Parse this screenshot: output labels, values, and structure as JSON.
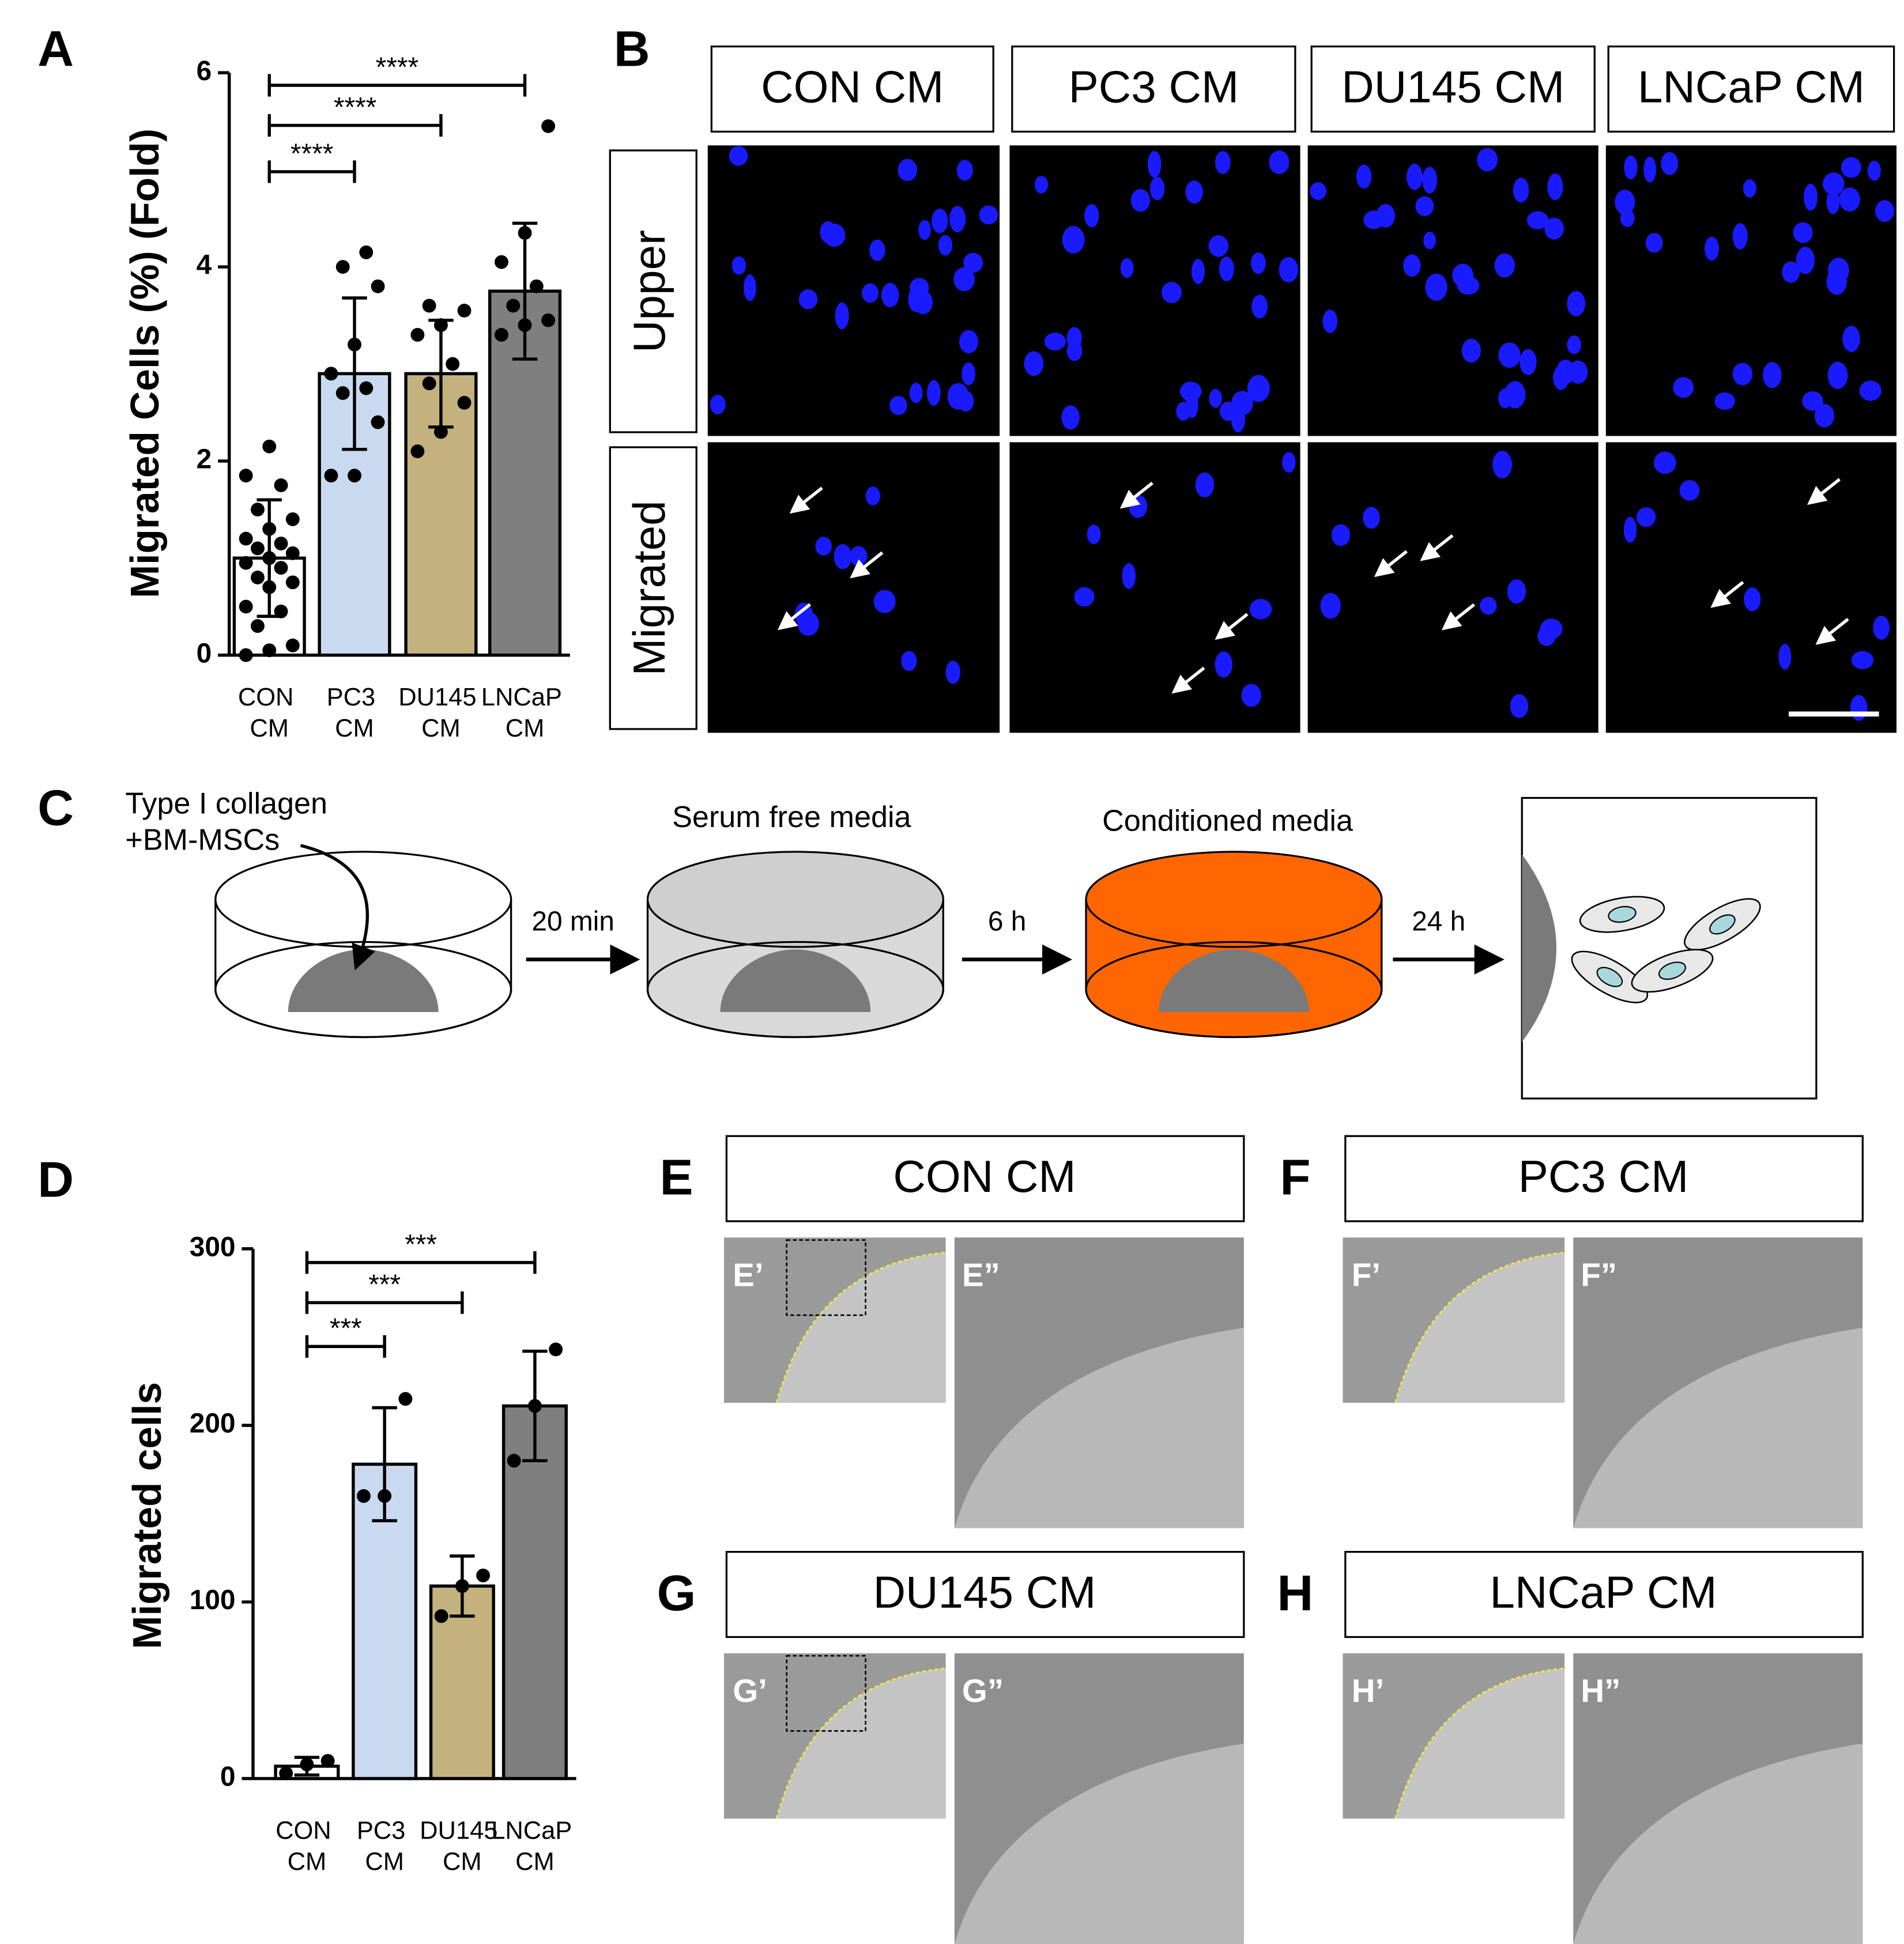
{
  "chart_data": [
    {
      "type": "bar",
      "panel": "A",
      "y_label": "Migrated Cells (%) (Fold)",
      "categories": [
        "CON CM",
        "PC3 CM",
        "DU145 CM",
        "LNCaP CM"
      ],
      "values": [
        1.0,
        2.9,
        2.9,
        3.75
      ],
      "errors": [
        0.6,
        0.78,
        0.55,
        0.7
      ],
      "points": [
        [
          0,
          0.05,
          0.1,
          0.3,
          0.45,
          0.5,
          0.7,
          0.75,
          0.8,
          0.9,
          0.95,
          1.0,
          1.05,
          1.1,
          1.15,
          1.2,
          1.3,
          1.4,
          1.5,
          1.75,
          1.85,
          2.15
        ],
        [
          1.85,
          1.85,
          2.4,
          2.7,
          2.75,
          2.9,
          3.2,
          3.8,
          4.0,
          4.15
        ],
        [
          2.1,
          2.3,
          2.6,
          2.8,
          3.0,
          3.3,
          3.4,
          3.55,
          3.6
        ],
        [
          3.3,
          3.4,
          3.45,
          3.6,
          3.8,
          4.05,
          4.35,
          5.45
        ]
      ],
      "colors": [
        "#ffffff",
        "#c9daf0",
        "#c4b27e",
        "#7f7f7f"
      ],
      "ylim": [
        0,
        6
      ],
      "yticks": [
        0,
        2,
        4,
        6
      ],
      "comparisons": [
        {
          "groups": [
            "CON CM",
            "PC3 CM"
          ],
          "label": "****"
        },
        {
          "groups": [
            "CON CM",
            "DU145 CM"
          ],
          "label": "****"
        },
        {
          "groups": [
            "CON CM",
            "LNCaP CM"
          ],
          "label": "****"
        }
      ]
    },
    {
      "type": "bar",
      "panel": "D",
      "y_label": "Migrated cells",
      "categories": [
        "CON CM",
        "PC3 CM",
        "DU145 CM",
        "LNCaP CM"
      ],
      "values": [
        7,
        178,
        109,
        211
      ],
      "errors": [
        5,
        32,
        17,
        31
      ],
      "points": [
        [
          3,
          8,
          10
        ],
        [
          160,
          160,
          215
        ],
        [
          92,
          109,
          115
        ],
        [
          180,
          211,
          243
        ]
      ],
      "colors": [
        "#ffffff",
        "#c9daf0",
        "#c4b27e",
        "#7f7f7f"
      ],
      "ylim": [
        0,
        300
      ],
      "yticks": [
        0,
        100,
        200,
        300
      ],
      "comparisons": [
        {
          "groups": [
            "CON CM",
            "PC3 CM"
          ],
          "label": "***"
        },
        {
          "groups": [
            "CON CM",
            "DU145 CM"
          ],
          "label": "***"
        },
        {
          "groups": [
            "CON CM",
            "LNCaP CM"
          ],
          "label": "***"
        }
      ]
    }
  ],
  "panel_b": {
    "letter": "B",
    "columns": [
      "CON CM",
      "PC3 CM",
      "DU145 CM",
      "LNCaP CM"
    ],
    "rows": [
      "Upper",
      "Migrated"
    ]
  },
  "panel_c": {
    "letter": "C",
    "collagen": "Type I collagen",
    "cells": "+BM-MSCs",
    "serum": "Serum free media",
    "conditioned": "Conditioned media",
    "steps": [
      "20 min",
      "6 h",
      "24 h"
    ]
  },
  "panels_eh": [
    {
      "letter": "E",
      "title": "CON CM",
      "insets": [
        "E’",
        "E”"
      ]
    },
    {
      "letter": "F",
      "title": "PC3 CM",
      "insets": [
        "F’",
        "F”"
      ]
    },
    {
      "letter": "G",
      "title": "DU145 CM",
      "insets": [
        "G’",
        "G”"
      ]
    },
    {
      "letter": "H",
      "title": "LNCaP CM",
      "insets": [
        "H’",
        "H”"
      ]
    }
  ]
}
